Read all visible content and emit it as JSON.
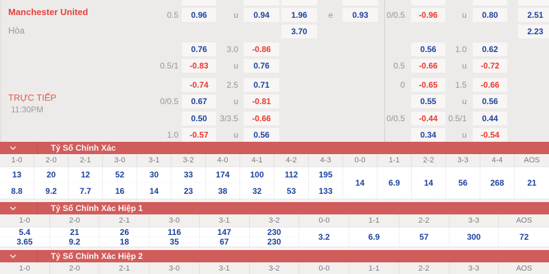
{
  "odds_panel": {
    "team": "Manchester United",
    "draw_label": "Hòa",
    "live_label": "TRỰC TIẾP",
    "kick_time": "11:30PM",
    "rows": [
      {
        "cells": [
          {
            "col": 1,
            "kind": "line",
            "value": "0.5"
          },
          {
            "col": 2,
            "kind": "odds",
            "value": "0.96"
          },
          {
            "col": 3,
            "kind": "line",
            "value": "u"
          },
          {
            "col": 4,
            "kind": "odds",
            "value": "0.94"
          },
          {
            "col": 5,
            "kind": "odds",
            "value": "1.96"
          },
          {
            "col": 6,
            "kind": "line",
            "value": "e"
          },
          {
            "col": 7,
            "kind": "odds",
            "value": "0.93"
          },
          {
            "col": 8,
            "kind": "line",
            "value": "0/0.5"
          },
          {
            "col": 9,
            "kind": "odds",
            "value": "-0.96"
          },
          {
            "col": 10,
            "kind": "line",
            "value": "u"
          },
          {
            "col": 11,
            "kind": "odds",
            "value": "0.80"
          },
          {
            "col": 12,
            "kind": "odds",
            "value": "2.51"
          }
        ]
      },
      {
        "cells": [
          {
            "col": 5,
            "kind": "odds",
            "value": "3.70"
          },
          {
            "col": 12,
            "kind": "odds",
            "value": "2.23"
          }
        ]
      },
      {
        "cells": [
          {
            "col": 2,
            "kind": "odds",
            "value": "0.76"
          },
          {
            "col": 3,
            "kind": "line",
            "value": "3.0"
          },
          {
            "col": 4,
            "kind": "odds",
            "value": "-0.86"
          },
          {
            "col": 9,
            "kind": "odds",
            "value": "0.56"
          },
          {
            "col": 10,
            "kind": "line",
            "value": "1.0"
          },
          {
            "col": 11,
            "kind": "odds",
            "value": "0.62"
          }
        ]
      },
      {
        "cells": [
          {
            "col": 1,
            "kind": "line",
            "value": "0.5/1"
          },
          {
            "col": 2,
            "kind": "odds",
            "value": "-0.83"
          },
          {
            "col": 3,
            "kind": "line",
            "value": "u"
          },
          {
            "col": 4,
            "kind": "odds",
            "value": "0.76"
          },
          {
            "col": 8,
            "kind": "line",
            "value": "0.5"
          },
          {
            "col": 9,
            "kind": "odds",
            "value": "-0.66"
          },
          {
            "col": 10,
            "kind": "line",
            "value": "u"
          },
          {
            "col": 11,
            "kind": "odds",
            "value": "-0.72"
          }
        ]
      },
      {
        "cells": [
          {
            "col": 2,
            "kind": "odds",
            "value": "-0.74"
          },
          {
            "col": 3,
            "kind": "line",
            "value": "2.5"
          },
          {
            "col": 4,
            "kind": "odds",
            "value": "0.71"
          },
          {
            "col": 8,
            "kind": "line",
            "value": "0"
          },
          {
            "col": 9,
            "kind": "odds",
            "value": "-0.65"
          },
          {
            "col": 10,
            "kind": "line",
            "value": "1.5"
          },
          {
            "col": 11,
            "kind": "odds",
            "value": "-0.66"
          }
        ]
      },
      {
        "cells": [
          {
            "col": 1,
            "kind": "line",
            "value": "0/0.5"
          },
          {
            "col": 2,
            "kind": "odds",
            "value": "0.67"
          },
          {
            "col": 3,
            "kind": "line",
            "value": "u"
          },
          {
            "col": 4,
            "kind": "odds",
            "value": "-0.81"
          },
          {
            "col": 9,
            "kind": "odds",
            "value": "0.55"
          },
          {
            "col": 10,
            "kind": "line",
            "value": "u"
          },
          {
            "col": 11,
            "kind": "odds",
            "value": "0.56"
          }
        ]
      },
      {
        "cells": [
          {
            "col": 2,
            "kind": "odds",
            "value": "0.50"
          },
          {
            "col": 3,
            "kind": "line",
            "value": "3/3.5"
          },
          {
            "col": 4,
            "kind": "odds",
            "value": "-0.66"
          },
          {
            "col": 8,
            "kind": "line",
            "value": "0/0.5"
          },
          {
            "col": 9,
            "kind": "odds",
            "value": "-0.44"
          },
          {
            "col": 10,
            "kind": "line",
            "value": "0.5/1"
          },
          {
            "col": 11,
            "kind": "odds",
            "value": "0.44"
          }
        ]
      },
      {
        "cells": [
          {
            "col": 1,
            "kind": "line",
            "value": "1.0"
          },
          {
            "col": 2,
            "kind": "odds",
            "value": "-0.57"
          },
          {
            "col": 3,
            "kind": "line",
            "value": "u"
          },
          {
            "col": 4,
            "kind": "odds",
            "value": "0.56"
          },
          {
            "col": 9,
            "kind": "odds",
            "value": "0.34"
          },
          {
            "col": 10,
            "kind": "line",
            "value": "u"
          },
          {
            "col": 11,
            "kind": "odds",
            "value": "-0.54"
          }
        ]
      }
    ]
  },
  "sections": [
    {
      "title": "Tỷ Số Chính Xác",
      "columns": [
        {
          "score": "1-0",
          "odds": [
            "13",
            "8.8"
          ]
        },
        {
          "score": "2-0",
          "odds": [
            "20",
            "9.2"
          ]
        },
        {
          "score": "2-1",
          "odds": [
            "12",
            "7.7"
          ]
        },
        {
          "score": "3-0",
          "odds": [
            "52",
            "16"
          ]
        },
        {
          "score": "3-1",
          "odds": [
            "30",
            "14"
          ]
        },
        {
          "score": "3-2",
          "odds": [
            "33",
            "23"
          ]
        },
        {
          "score": "4-0",
          "odds": [
            "174",
            "38"
          ]
        },
        {
          "score": "4-1",
          "odds": [
            "100",
            "32"
          ]
        },
        {
          "score": "4-2",
          "odds": [
            "112",
            "53"
          ]
        },
        {
          "score": "4-3",
          "odds": [
            "195",
            "133"
          ]
        },
        {
          "score": "0-0",
          "odds": [
            "14"
          ]
        },
        {
          "score": "1-1",
          "odds": [
            "6.9"
          ]
        },
        {
          "score": "2-2",
          "odds": [
            "14"
          ]
        },
        {
          "score": "3-3",
          "odds": [
            "56"
          ]
        },
        {
          "score": "4-4",
          "odds": [
            "268"
          ]
        },
        {
          "score": "AOS",
          "odds": [
            "21"
          ]
        }
      ]
    },
    {
      "title": "Tỷ Số Chính Xác Hiệp 1",
      "columns": [
        {
          "score": "1-0",
          "odds": [
            "5.4",
            "3.65"
          ]
        },
        {
          "score": "2-0",
          "odds": [
            "21",
            "9.2"
          ]
        },
        {
          "score": "2-1",
          "odds": [
            "26",
            "18"
          ]
        },
        {
          "score": "3-0",
          "odds": [
            "116",
            "35"
          ]
        },
        {
          "score": "3-1",
          "odds": [
            "147",
            "67"
          ]
        },
        {
          "score": "3-2",
          "odds": [
            "230",
            "230"
          ]
        },
        {
          "score": "0-0",
          "odds": [
            "3.2"
          ]
        },
        {
          "score": "1-1",
          "odds": [
            "6.9"
          ]
        },
        {
          "score": "2-2",
          "odds": [
            "57"
          ]
        },
        {
          "score": "3-3",
          "odds": [
            "300"
          ]
        },
        {
          "score": "AOS",
          "odds": [
            "72"
          ]
        }
      ]
    },
    {
      "title": "Tỷ Số Chính Xác Hiệp 2",
      "columns": [
        {
          "score": "1-0",
          "odds": []
        },
        {
          "score": "2-0",
          "odds": []
        },
        {
          "score": "2-1",
          "odds": []
        },
        {
          "score": "3-0",
          "odds": []
        },
        {
          "score": "3-1",
          "odds": []
        },
        {
          "score": "3-2",
          "odds": []
        },
        {
          "score": "0-0",
          "odds": []
        },
        {
          "score": "1-1",
          "odds": []
        },
        {
          "score": "2-2",
          "odds": []
        },
        {
          "score": "3-3",
          "odds": []
        },
        {
          "score": "AOS",
          "odds": []
        }
      ]
    }
  ],
  "colors": {
    "positive_odds": "#1e429f",
    "negative_odds": "#ee372c",
    "section_bar": "#d15c5c",
    "team_name": "#e8403a"
  }
}
